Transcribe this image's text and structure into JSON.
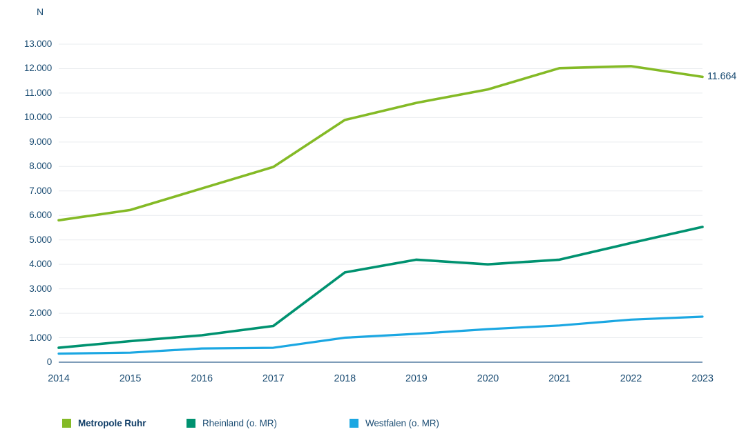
{
  "chart_data": {
    "type": "line",
    "title": "",
    "ylabel": "N",
    "xlabel": "",
    "x": [
      "2014",
      "2015",
      "2016",
      "2017",
      "2018",
      "2019",
      "2020",
      "2021",
      "2022",
      "2023"
    ],
    "series": [
      {
        "name": "Metropole Ruhr",
        "color": "#84ba26",
        "values": [
          5800,
          6220,
          7100,
          7980,
          9900,
          10600,
          11150,
          12020,
          12100,
          11664
        ],
        "end_label": "11.664",
        "bold_legend": true,
        "stroke_width": 3.6
      },
      {
        "name": "Rheinland (o. MR)",
        "color": "#009270",
        "values": [
          590,
          860,
          1100,
          1480,
          3670,
          4190,
          4000,
          4190,
          4870,
          5530
        ],
        "end_label": "",
        "bold_legend": false,
        "stroke_width": 3.6
      },
      {
        "name": "Westfalen (o. MR)",
        "color": "#1ba7e2",
        "values": [
          350,
          390,
          560,
          590,
          1000,
          1160,
          1350,
          1500,
          1740,
          1860
        ],
        "end_label": "",
        "bold_legend": false,
        "stroke_width": 3.2
      }
    ],
    "ylim": [
      0,
      13000
    ],
    "ytick_step": 1000,
    "ytick_labels": [
      "0",
      "1.000",
      "2.000",
      "3.000",
      "4.000",
      "5.000",
      "6.000",
      "7.000",
      "8.000",
      "9.000",
      "10.000",
      "11.000",
      "12.000",
      "13.000"
    ],
    "grid": true,
    "gridline_color": "#e9ecef",
    "axis_line_color": "#7f9db9",
    "tick_label_color": "#1d4e74",
    "legend_position": "bottom"
  }
}
